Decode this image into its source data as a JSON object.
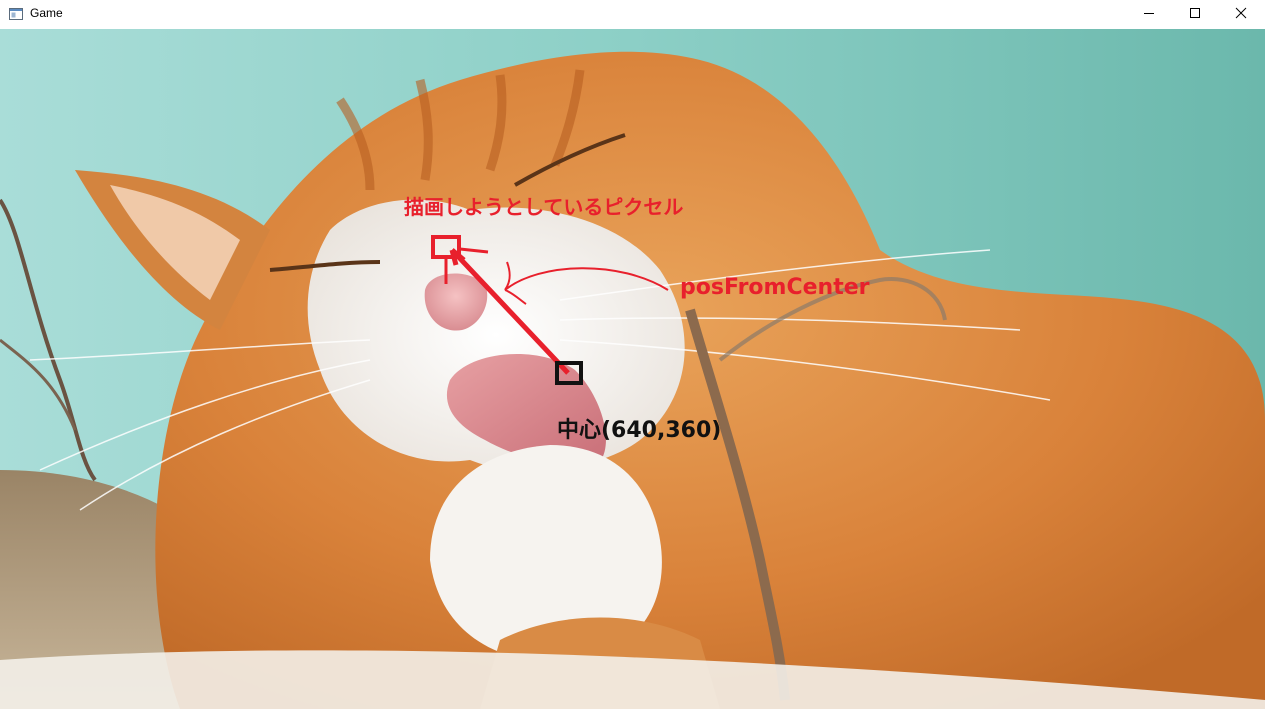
{
  "window": {
    "title": "Game",
    "icon": "app-window-icon",
    "controls": {
      "minimize_icon": "minimize-icon",
      "maximize_icon": "maximize-icon",
      "close_icon": "close-icon"
    }
  },
  "scene": {
    "image_subject": "orange-and-white cat licking its paw",
    "annotations": {
      "target_pixel_label": "描画しようとしているピクセル",
      "vector_label": "posFromCenter",
      "center_label": "中心(640,360)"
    },
    "colors": {
      "annotation_red": "#e8202c",
      "annotation_black": "#111111",
      "background_teal": "#7fc9c0"
    }
  }
}
